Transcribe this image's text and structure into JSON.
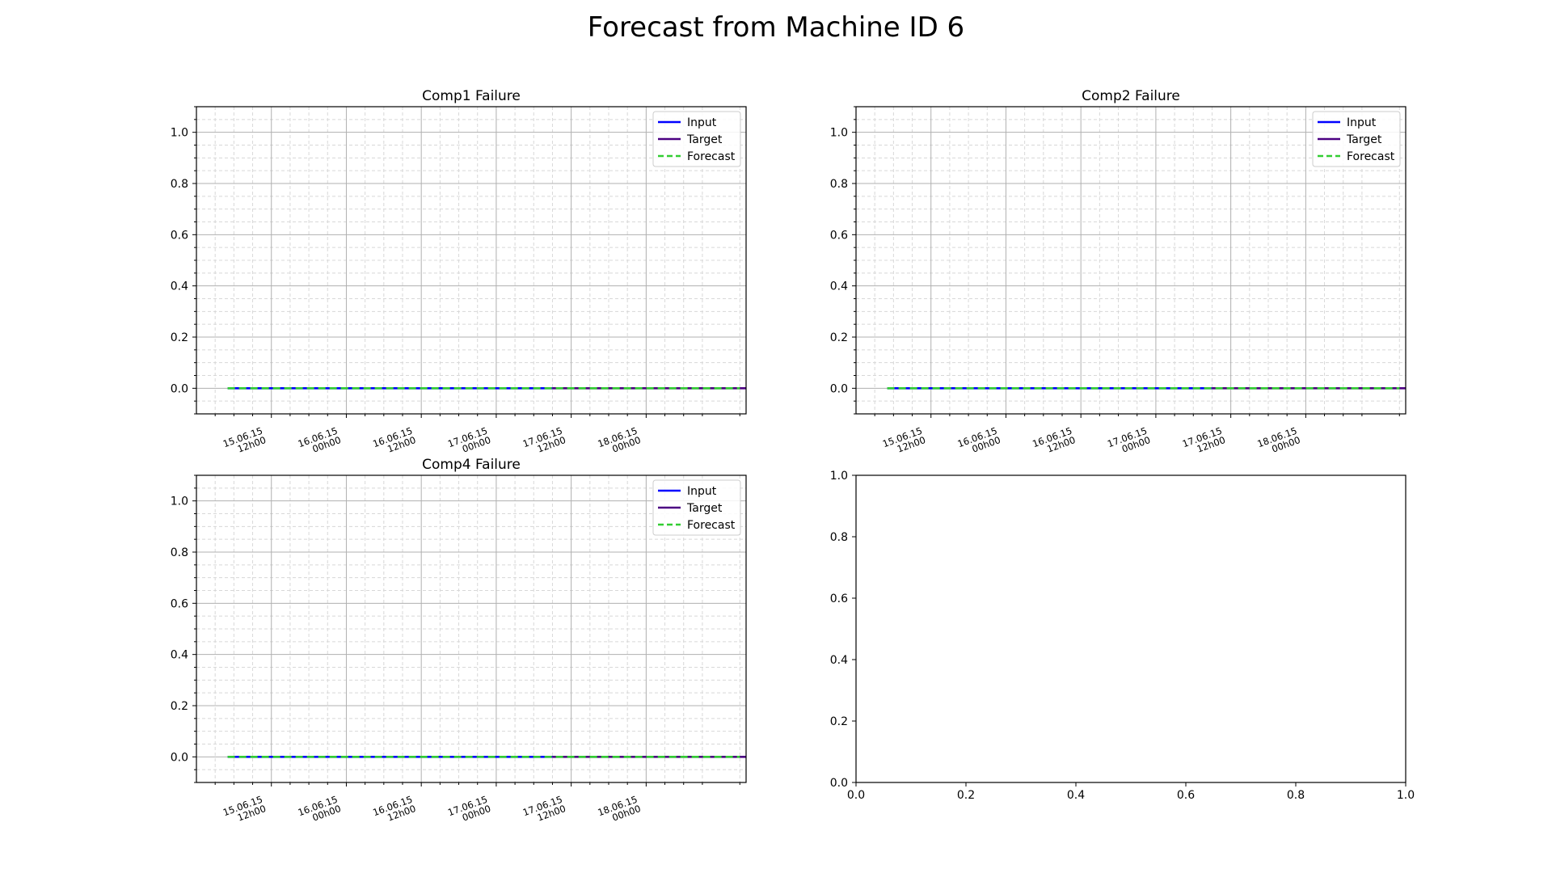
{
  "figure": {
    "suptitle": "Forecast from Machine ID 6"
  },
  "chart_data": [
    {
      "type": "line",
      "title": "Comp1 Failure",
      "xlabel": "",
      "ylabel": "",
      "x_axis": "datetime",
      "x_range": [
        "2015-06-15 00:00",
        "2015-06-18 16:00"
      ],
      "x_ticks": [
        "2015-06-15 12:00",
        "2015-06-16 00:00",
        "2015-06-16 12:00",
        "2015-06-17 00:00",
        "2015-06-17 12:00",
        "2015-06-18 00:00"
      ],
      "x_tick_labels": [
        [
          "15.06.15",
          "12h00"
        ],
        [
          "16.06.15",
          "00h00"
        ],
        [
          "16.06.15",
          "12h00"
        ],
        [
          "17.06.15",
          "00h00"
        ],
        [
          "17.06.15",
          "12h00"
        ],
        [
          "18.06.15",
          "00h00"
        ]
      ],
      "ylim": [
        -0.1,
        1.1
      ],
      "y_ticks": [
        0.0,
        0.2,
        0.4,
        0.6,
        0.8,
        1.0
      ],
      "y_tick_labels": [
        "0.0",
        "0.2",
        "0.4",
        "0.6",
        "0.8",
        "1.0"
      ],
      "grid": true,
      "minor_grid": true,
      "legend_position": "upper right",
      "series": [
        {
          "name": "Input",
          "color": "#0000ff",
          "style": "solid",
          "x": [
            "2015-06-15 05:00",
            "2015-06-17 09:00"
          ],
          "values": [
            0.0,
            0.0
          ]
        },
        {
          "name": "Target",
          "color": "#4b0082",
          "style": "solid",
          "x": [
            "2015-06-17 09:00",
            "2015-06-18 16:00"
          ],
          "values": [
            0.0,
            0.0
          ]
        },
        {
          "name": "Forecast",
          "color": "#32cd32",
          "style": "dashed",
          "x": [
            "2015-06-15 05:00",
            "2015-06-18 15:00"
          ],
          "values": [
            0.0,
            0.0
          ]
        }
      ]
    },
    {
      "type": "line",
      "title": "Comp2 Failure",
      "xlabel": "",
      "ylabel": "",
      "x_axis": "datetime",
      "x_range": [
        "2015-06-15 00:00",
        "2015-06-18 16:00"
      ],
      "x_ticks": [
        "2015-06-15 12:00",
        "2015-06-16 00:00",
        "2015-06-16 12:00",
        "2015-06-17 00:00",
        "2015-06-17 12:00",
        "2015-06-18 00:00"
      ],
      "x_tick_labels": [
        [
          "15.06.15",
          "12h00"
        ],
        [
          "16.06.15",
          "00h00"
        ],
        [
          "16.06.15",
          "12h00"
        ],
        [
          "17.06.15",
          "00h00"
        ],
        [
          "17.06.15",
          "12h00"
        ],
        [
          "18.06.15",
          "00h00"
        ]
      ],
      "ylim": [
        -0.1,
        1.1
      ],
      "y_ticks": [
        0.0,
        0.2,
        0.4,
        0.6,
        0.8,
        1.0
      ],
      "y_tick_labels": [
        "0.0",
        "0.2",
        "0.4",
        "0.6",
        "0.8",
        "1.0"
      ],
      "grid": true,
      "minor_grid": true,
      "legend_position": "upper right",
      "series": [
        {
          "name": "Input",
          "color": "#0000ff",
          "style": "solid",
          "x": [
            "2015-06-15 05:00",
            "2015-06-17 09:00"
          ],
          "values": [
            0.0,
            0.0
          ]
        },
        {
          "name": "Target",
          "color": "#4b0082",
          "style": "solid",
          "x": [
            "2015-06-17 09:00",
            "2015-06-18 16:00"
          ],
          "values": [
            0.0,
            0.0
          ]
        },
        {
          "name": "Forecast",
          "color": "#32cd32",
          "style": "dashed",
          "x": [
            "2015-06-15 05:00",
            "2015-06-18 15:00"
          ],
          "values": [
            0.0,
            0.0
          ]
        }
      ]
    },
    {
      "type": "line",
      "title": "Comp4 Failure",
      "xlabel": "",
      "ylabel": "",
      "x_axis": "datetime",
      "x_range": [
        "2015-06-15 00:00",
        "2015-06-18 16:00"
      ],
      "x_ticks": [
        "2015-06-15 12:00",
        "2015-06-16 00:00",
        "2015-06-16 12:00",
        "2015-06-17 00:00",
        "2015-06-17 12:00",
        "2015-06-18 00:00"
      ],
      "x_tick_labels": [
        [
          "15.06.15",
          "12h00"
        ],
        [
          "16.06.15",
          "00h00"
        ],
        [
          "16.06.15",
          "12h00"
        ],
        [
          "17.06.15",
          "00h00"
        ],
        [
          "17.06.15",
          "12h00"
        ],
        [
          "18.06.15",
          "00h00"
        ]
      ],
      "ylim": [
        -0.1,
        1.1
      ],
      "y_ticks": [
        0.0,
        0.2,
        0.4,
        0.6,
        0.8,
        1.0
      ],
      "y_tick_labels": [
        "0.0",
        "0.2",
        "0.4",
        "0.6",
        "0.8",
        "1.0"
      ],
      "grid": true,
      "minor_grid": true,
      "legend_position": "upper right",
      "series": [
        {
          "name": "Input",
          "color": "#0000ff",
          "style": "solid",
          "x": [
            "2015-06-15 05:00",
            "2015-06-17 09:00"
          ],
          "values": [
            0.0,
            0.0
          ]
        },
        {
          "name": "Target",
          "color": "#4b0082",
          "style": "solid",
          "x": [
            "2015-06-17 09:00",
            "2015-06-18 16:00"
          ],
          "values": [
            0.0,
            0.0
          ]
        },
        {
          "name": "Forecast",
          "color": "#32cd32",
          "style": "dashed",
          "x": [
            "2015-06-15 05:00",
            "2015-06-18 15:00"
          ],
          "values": [
            0.0,
            0.0
          ]
        }
      ]
    },
    {
      "type": "line",
      "title": "",
      "xlabel": "",
      "ylabel": "",
      "x_axis": "numeric",
      "xlim": [
        0.0,
        1.0
      ],
      "ylim": [
        0.0,
        1.0
      ],
      "x_ticks": [
        0.0,
        0.2,
        0.4,
        0.6,
        0.8,
        1.0
      ],
      "x_tick_labels": [
        "0.0",
        "0.2",
        "0.4",
        "0.6",
        "0.8",
        "1.0"
      ],
      "y_ticks": [
        0.0,
        0.2,
        0.4,
        0.6,
        0.8,
        1.0
      ],
      "y_tick_labels": [
        "0.0",
        "0.2",
        "0.4",
        "0.6",
        "0.8",
        "1.0"
      ],
      "grid": false,
      "series": []
    }
  ]
}
